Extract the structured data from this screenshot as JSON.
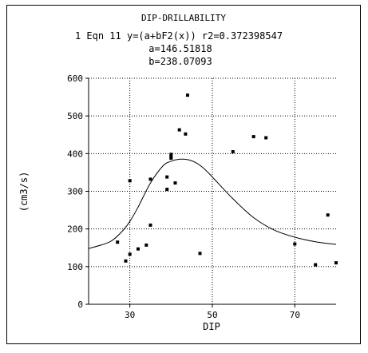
{
  "chart_data": {
    "type": "scatter",
    "title": "DIP-DRILLABILITY",
    "equation": "1 Eqn 11  y=(a+bF2(x))  r2=0.372398547",
    "param_a": "a=146.51818",
    "param_b": "b=238.07093",
    "xlabel": "DIP",
    "ylabel": "(cm3/s)",
    "xlim": [
      20,
      80
    ],
    "ylim": [
      0,
      600
    ],
    "xticks": [
      30,
      50,
      70
    ],
    "yticks": [
      0,
      100,
      200,
      300,
      400,
      500,
      600
    ],
    "grid": true,
    "points": [
      {
        "x": 27,
        "y": 165
      },
      {
        "x": 29,
        "y": 115
      },
      {
        "x": 30,
        "y": 133
      },
      {
        "x": 30,
        "y": 328
      },
      {
        "x": 32,
        "y": 147
      },
      {
        "x": 34,
        "y": 157
      },
      {
        "x": 35,
        "y": 210
      },
      {
        "x": 35,
        "y": 332
      },
      {
        "x": 39,
        "y": 305
      },
      {
        "x": 39,
        "y": 338
      },
      {
        "x": 40,
        "y": 388
      },
      {
        "x": 40,
        "y": 392
      },
      {
        "x": 40,
        "y": 398
      },
      {
        "x": 41,
        "y": 322
      },
      {
        "x": 42,
        "y": 463
      },
      {
        "x": 43.5,
        "y": 452
      },
      {
        "x": 44,
        "y": 555
      },
      {
        "x": 47,
        "y": 135
      },
      {
        "x": 55,
        "y": 405
      },
      {
        "x": 60,
        "y": 445
      },
      {
        "x": 63,
        "y": 442
      },
      {
        "x": 70,
        "y": 160
      },
      {
        "x": 75,
        "y": 105
      },
      {
        "x": 78,
        "y": 237
      },
      {
        "x": 80,
        "y": 110
      }
    ],
    "fit_curve": {
      "name": "",
      "x": [
        20,
        25,
        28,
        30,
        32,
        35,
        38,
        40,
        42,
        44,
        46,
        48,
        50,
        55,
        60,
        65,
        70,
        75,
        80
      ],
      "y": [
        148,
        165,
        192,
        220,
        258,
        322,
        367,
        380,
        385,
        384,
        376,
        360,
        338,
        280,
        230,
        197,
        178,
        166,
        159
      ]
    }
  }
}
